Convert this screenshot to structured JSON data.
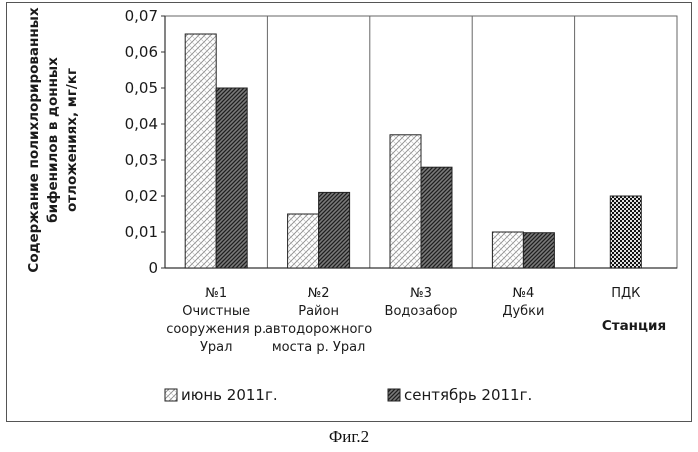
{
  "chart_data": {
    "type": "bar",
    "ylabel": [
      "Содержание полихлорированных",
      "бифенилов в донных",
      "отложениях, мг/кг"
    ],
    "xlabel": "Станция",
    "ylim": [
      0,
      0.07
    ],
    "yticks": [
      "0",
      "0,01",
      "0,02",
      "0,03",
      "0,04",
      "0,05",
      "0,06",
      "0,07"
    ],
    "categories": [
      [
        "№1",
        "Очистные",
        "сооружения р.",
        "Урал"
      ],
      [
        "№2",
        "Район",
        "автодорожного",
        "моста  р. Урал"
      ],
      [
        "№3",
        "Водозабор"
      ],
      [
        "№4",
        "Дубки"
      ],
      [
        "ПДК"
      ]
    ],
    "series": [
      {
        "name": "июнь 2011г.",
        "pattern": "light",
        "values": [
          0.065,
          0.015,
          0.037,
          0.01,
          null
        ]
      },
      {
        "name": "сентябрь 2011г.",
        "pattern": "dark",
        "values": [
          0.05,
          0.021,
          0.028,
          0.0098,
          null
        ]
      },
      {
        "name": "ПДК",
        "pattern": "check",
        "values": [
          null,
          null,
          null,
          null,
          0.02
        ]
      }
    ],
    "legend": "bottom"
  },
  "caption": "Фиг.2",
  "colors": {
    "light": "#9a9a9a",
    "dark": "#2a2a2a",
    "check": "#111111",
    "grid": "#666666"
  }
}
